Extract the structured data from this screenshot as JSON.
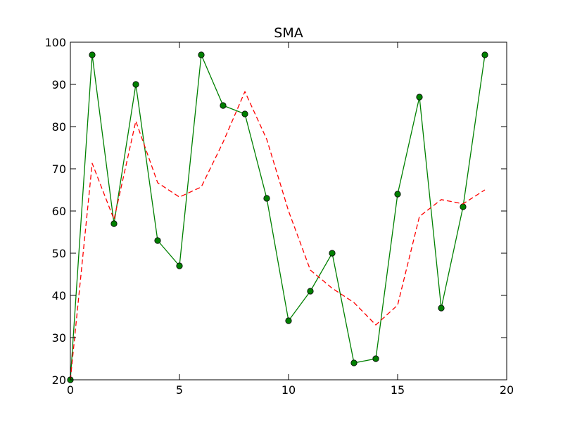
{
  "chart_data": {
    "type": "line",
    "title": "SMA",
    "xlabel": "",
    "ylabel": "",
    "xlim": [
      0,
      20
    ],
    "ylim": [
      20,
      100
    ],
    "grid": false,
    "legend": "none",
    "x_ticks": [
      0,
      5,
      10,
      15,
      20
    ],
    "y_ticks": [
      20,
      30,
      40,
      50,
      60,
      70,
      80,
      90,
      100
    ],
    "x_tick_labels": [
      "0",
      "5",
      "10",
      "15",
      "20"
    ],
    "y_tick_labels": [
      "20",
      "30",
      "40",
      "50",
      "60",
      "70",
      "80",
      "90",
      "100"
    ],
    "series": [
      {
        "role": "raw",
        "color": "#008000",
        "line_style": "solid",
        "marker": "circle",
        "x": [
          0,
          1,
          2,
          3,
          4,
          5,
          6,
          7,
          8,
          9,
          10,
          11,
          12,
          13,
          14,
          15,
          16,
          17,
          18,
          19
        ],
        "values": [
          20,
          97,
          57,
          90,
          53,
          47,
          97,
          85,
          83,
          63,
          34,
          41,
          50,
          24,
          25,
          64,
          87,
          37,
          61,
          97
        ]
      },
      {
        "role": "sma",
        "color": "#ff0000",
        "line_style": "dashed",
        "marker": "none",
        "x": [
          0,
          1,
          2,
          3,
          4,
          5,
          6,
          7,
          8,
          9,
          10,
          11,
          12,
          13,
          14,
          15,
          16,
          17,
          18,
          19
        ],
        "values": [
          20,
          71.3,
          58,
          81.3,
          66.7,
          63.3,
          65.7,
          76.3,
          88.3,
          77,
          60,
          46,
          41.7,
          38.3,
          33,
          37.7,
          58.7,
          62.7,
          61.7,
          65
        ]
      }
    ]
  }
}
